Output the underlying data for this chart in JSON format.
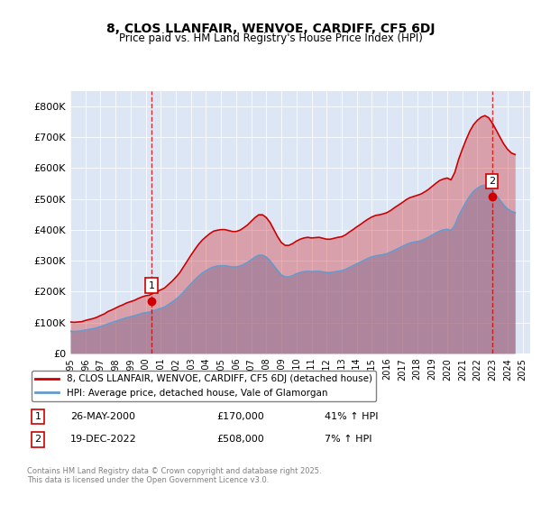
{
  "title": "8, CLOS LLANFAIR, WENVOE, CARDIFF, CF5 6DJ",
  "subtitle": "Price paid vs. HM Land Registry's House Price Index (HPI)",
  "bg_color": "#dce6f5",
  "plot_bg_color": "#dce6f5",
  "red_color": "#cc0000",
  "blue_color": "#6699cc",
  "ylim": [
    0,
    850000
  ],
  "yticks": [
    0,
    100000,
    200000,
    300000,
    400000,
    500000,
    600000,
    700000,
    800000
  ],
  "ytick_labels": [
    "£0",
    "£100K",
    "£200K",
    "£300K",
    "£400K",
    "£500K",
    "£600K",
    "£700K",
    "£800K"
  ],
  "xlim_start": 1995.0,
  "xlim_end": 2025.5,
  "xtick_years": [
    1995,
    1996,
    1997,
    1998,
    1999,
    2000,
    2001,
    2002,
    2003,
    2004,
    2005,
    2006,
    2007,
    2008,
    2009,
    2010,
    2011,
    2012,
    2013,
    2014,
    2015,
    2016,
    2017,
    2018,
    2019,
    2020,
    2021,
    2022,
    2023,
    2024,
    2025
  ],
  "transaction1_x": 2000.4,
  "transaction1_y": 170000,
  "transaction1_label": "1",
  "transaction2_x": 2022.96,
  "transaction2_y": 508000,
  "transaction2_label": "2",
  "legend_line1": "8, CLOS LLANFAIR, WENVOE, CARDIFF, CF5 6DJ (detached house)",
  "legend_line2": "HPI: Average price, detached house, Vale of Glamorgan",
  "annotation1_date": "26-MAY-2000",
  "annotation1_price": "£170,000",
  "annotation1_hpi": "41% ↑ HPI",
  "annotation2_date": "19-DEC-2022",
  "annotation2_price": "£508,000",
  "annotation2_hpi": "7% ↑ HPI",
  "footer": "Contains HM Land Registry data © Crown copyright and database right 2025.\nThis data is licensed under the Open Government Licence v3.0.",
  "hpi_data_x": [
    1995.0,
    1995.25,
    1995.5,
    1995.75,
    1996.0,
    1996.25,
    1996.5,
    1996.75,
    1997.0,
    1997.25,
    1997.5,
    1997.75,
    1998.0,
    1998.25,
    1998.5,
    1998.75,
    1999.0,
    1999.25,
    1999.5,
    1999.75,
    2000.0,
    2000.25,
    2000.5,
    2000.75,
    2001.0,
    2001.25,
    2001.5,
    2001.75,
    2002.0,
    2002.25,
    2002.5,
    2002.75,
    2003.0,
    2003.25,
    2003.5,
    2003.75,
    2004.0,
    2004.25,
    2004.5,
    2004.75,
    2005.0,
    2005.25,
    2005.5,
    2005.75,
    2006.0,
    2006.25,
    2006.5,
    2006.75,
    2007.0,
    2007.25,
    2007.5,
    2007.75,
    2008.0,
    2008.25,
    2008.5,
    2008.75,
    2009.0,
    2009.25,
    2009.5,
    2009.75,
    2010.0,
    2010.25,
    2010.5,
    2010.75,
    2011.0,
    2011.25,
    2011.5,
    2011.75,
    2012.0,
    2012.25,
    2012.5,
    2012.75,
    2013.0,
    2013.25,
    2013.5,
    2013.75,
    2014.0,
    2014.25,
    2014.5,
    2014.75,
    2015.0,
    2015.25,
    2015.5,
    2015.75,
    2016.0,
    2016.25,
    2016.5,
    2016.75,
    2017.0,
    2017.25,
    2017.5,
    2017.75,
    2018.0,
    2018.25,
    2018.5,
    2018.75,
    2019.0,
    2019.25,
    2019.5,
    2019.75,
    2020.0,
    2020.25,
    2020.5,
    2020.75,
    2021.0,
    2021.25,
    2021.5,
    2021.75,
    2022.0,
    2022.25,
    2022.5,
    2022.75,
    2023.0,
    2023.25,
    2023.5,
    2023.75,
    2024.0,
    2024.25,
    2024.5
  ],
  "hpi_data_y": [
    72000,
    71000,
    72000,
    73000,
    76000,
    78000,
    80000,
    83000,
    87000,
    91000,
    96000,
    100000,
    104000,
    108000,
    112000,
    116000,
    119000,
    122000,
    126000,
    130000,
    132000,
    134000,
    138000,
    142000,
    146000,
    150000,
    158000,
    166000,
    175000,
    185000,
    198000,
    212000,
    225000,
    238000,
    250000,
    260000,
    268000,
    275000,
    280000,
    283000,
    284000,
    284000,
    282000,
    280000,
    280000,
    283000,
    288000,
    295000,
    303000,
    312000,
    318000,
    318000,
    312000,
    300000,
    284000,
    268000,
    254000,
    248000,
    248000,
    252000,
    258000,
    262000,
    265000,
    266000,
    265000,
    266000,
    266000,
    264000,
    262000,
    262000,
    264000,
    266000,
    268000,
    272000,
    278000,
    284000,
    290000,
    296000,
    302000,
    308000,
    313000,
    316000,
    318000,
    320000,
    323000,
    328000,
    334000,
    340000,
    346000,
    352000,
    357000,
    360000,
    362000,
    365000,
    370000,
    376000,
    383000,
    390000,
    396000,
    400000,
    402000,
    398000,
    415000,
    445000,
    468000,
    490000,
    510000,
    525000,
    535000,
    542000,
    545000,
    540000,
    528000,
    512000,
    496000,
    480000,
    468000,
    460000,
    456000
  ],
  "red_data_x": [
    1995.0,
    1995.25,
    1995.5,
    1995.75,
    1996.0,
    1996.25,
    1996.5,
    1996.75,
    1997.0,
    1997.25,
    1997.5,
    1997.75,
    1998.0,
    1998.25,
    1998.5,
    1998.75,
    1999.0,
    1999.25,
    1999.5,
    1999.75,
    2000.0,
    2000.25,
    2000.5,
    2000.75,
    2001.0,
    2001.25,
    2001.5,
    2001.75,
    2002.0,
    2002.25,
    2002.5,
    2002.75,
    2003.0,
    2003.25,
    2003.5,
    2003.75,
    2004.0,
    2004.25,
    2004.5,
    2004.75,
    2005.0,
    2005.25,
    2005.5,
    2005.75,
    2006.0,
    2006.25,
    2006.5,
    2006.75,
    2007.0,
    2007.25,
    2007.5,
    2007.75,
    2008.0,
    2008.25,
    2008.5,
    2008.75,
    2009.0,
    2009.25,
    2009.5,
    2009.75,
    2010.0,
    2010.25,
    2010.5,
    2010.75,
    2011.0,
    2011.25,
    2011.5,
    2011.75,
    2012.0,
    2012.25,
    2012.5,
    2012.75,
    2013.0,
    2013.25,
    2013.5,
    2013.75,
    2014.0,
    2014.25,
    2014.5,
    2014.75,
    2015.0,
    2015.25,
    2015.5,
    2015.75,
    2016.0,
    2016.25,
    2016.5,
    2016.75,
    2017.0,
    2017.25,
    2017.5,
    2017.75,
    2018.0,
    2018.25,
    2018.5,
    2018.75,
    2019.0,
    2019.25,
    2019.5,
    2019.75,
    2020.0,
    2020.25,
    2020.5,
    2020.75,
    2021.0,
    2021.25,
    2021.5,
    2021.75,
    2022.0,
    2022.25,
    2022.5,
    2022.75,
    2023.0,
    2023.25,
    2023.5,
    2023.75,
    2024.0,
    2024.25,
    2024.5
  ],
  "red_data_y": [
    102000,
    101000,
    102000,
    103000,
    107000,
    110000,
    113000,
    117000,
    123000,
    128000,
    136000,
    141000,
    147000,
    153000,
    158000,
    164000,
    168000,
    172000,
    178000,
    183000,
    187000,
    189000,
    195000,
    201000,
    206000,
    212000,
    223000,
    234000,
    247000,
    261000,
    280000,
    299000,
    318000,
    336000,
    353000,
    367000,
    378000,
    388000,
    396000,
    399000,
    401000,
    401000,
    398000,
    395000,
    395000,
    399000,
    407000,
    416000,
    428000,
    440000,
    449000,
    449000,
    440000,
    424000,
    401000,
    378000,
    359000,
    350000,
    350000,
    356000,
    364000,
    370000,
    374000,
    376000,
    374000,
    375000,
    376000,
    373000,
    370000,
    370000,
    373000,
    376000,
    378000,
    384000,
    393000,
    401000,
    410000,
    418000,
    427000,
    435000,
    442000,
    447000,
    449000,
    452000,
    456000,
    463000,
    472000,
    480000,
    488000,
    497000,
    504000,
    508000,
    512000,
    516000,
    523000,
    531000,
    541000,
    551000,
    560000,
    565000,
    568000,
    562000,
    586000,
    628000,
    661000,
    692000,
    720000,
    741000,
    755000,
    765000,
    770000,
    763000,
    745000,
    723000,
    700000,
    678000,
    661000,
    649000,
    644000
  ]
}
